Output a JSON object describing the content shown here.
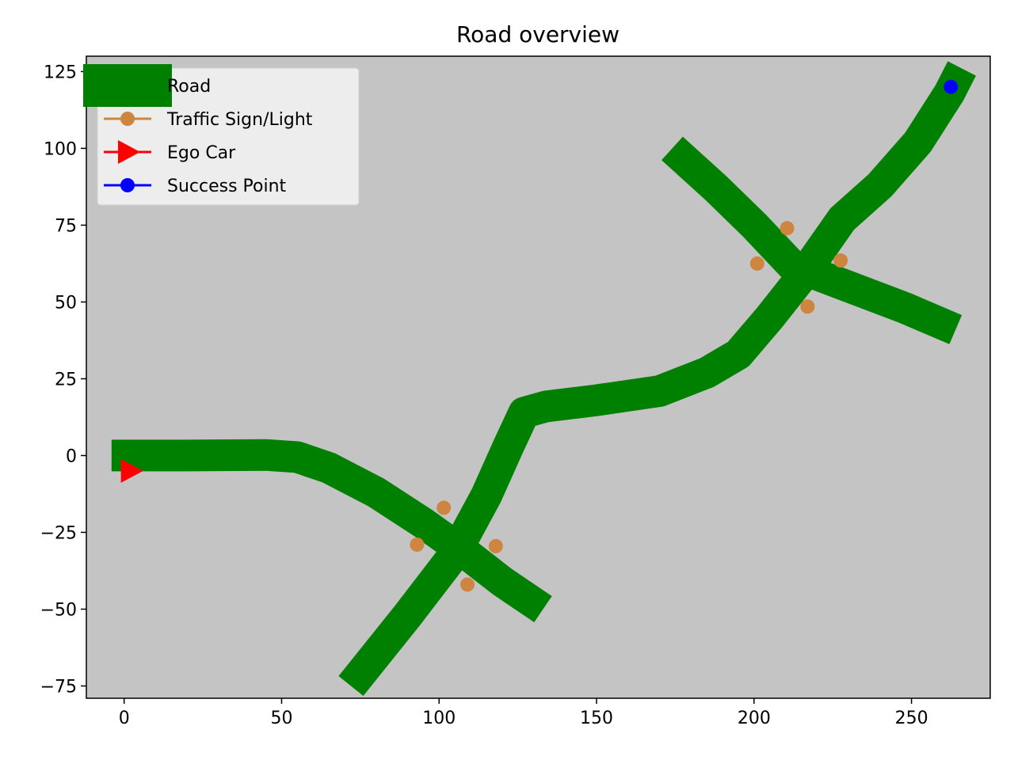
{
  "chart_data": {
    "type": "line",
    "title": "Road overview",
    "xlabel": "",
    "ylabel": "",
    "xlim": [
      -12,
      275
    ],
    "ylim": [
      -79,
      130
    ],
    "xticks": [
      0,
      50,
      100,
      150,
      200,
      250
    ],
    "yticks": [
      -75,
      -50,
      -25,
      0,
      25,
      50,
      75,
      100,
      125
    ],
    "grid": false,
    "legend_position": "top-left",
    "colors": {
      "background": "#c4c4c4",
      "road": "#008000",
      "traffic": "#cd853f",
      "ego": "#ff0000",
      "success": "#0000ff"
    },
    "legend": [
      {
        "label": "Road",
        "style": "road"
      },
      {
        "label": "Traffic Sign/Light",
        "style": "traffic"
      },
      {
        "label": "Ego Car",
        "style": "ego"
      },
      {
        "label": "Success Point",
        "style": "success"
      }
    ],
    "series": [
      {
        "name": "Road",
        "segments": [
          [
            [
              -4,
              0
            ],
            [
              20,
              0
            ],
            [
              45,
              0.2
            ],
            [
              55,
              -0.5
            ],
            [
              65,
              -4
            ],
            [
              80,
              -12
            ],
            [
              95,
              -22
            ],
            [
              110,
              -33
            ],
            [
              120,
              -41
            ],
            [
              133,
              -50
            ]
          ],
          [
            [
              72,
              -75
            ],
            [
              90,
              -52
            ],
            [
              105,
              -32
            ],
            [
              115,
              -13
            ],
            [
              122,
              3
            ],
            [
              127,
              14
            ],
            [
              134,
              16
            ],
            [
              150,
              18
            ],
            [
              170,
              21
            ],
            [
              185,
              27
            ],
            [
              195,
              33
            ],
            [
              205,
              45
            ],
            [
              215,
              58
            ],
            [
              228,
              77
            ],
            [
              240,
              88
            ],
            [
              252,
              102
            ],
            [
              262,
              118
            ],
            [
              266,
              126
            ]
          ],
          [
            [
              174,
              100
            ],
            [
              188,
              87
            ],
            [
              200,
              75
            ],
            [
              212,
              62
            ],
            [
              230,
              55
            ],
            [
              248,
              48
            ],
            [
              264,
              41
            ]
          ]
        ]
      },
      {
        "name": "Traffic Sign/Light",
        "points": [
          [
            101.5,
            -17
          ],
          [
            93,
            -29
          ],
          [
            118,
            -29.5
          ],
          [
            109,
            -42
          ],
          [
            210.5,
            74
          ],
          [
            201,
            62.5
          ],
          [
            227.5,
            63.5
          ],
          [
            217,
            48.5
          ]
        ]
      },
      {
        "name": "Ego Car",
        "points": [
          [
            2,
            -5
          ]
        ]
      },
      {
        "name": "Success Point",
        "points": [
          [
            262.5,
            120
          ]
        ]
      }
    ]
  }
}
